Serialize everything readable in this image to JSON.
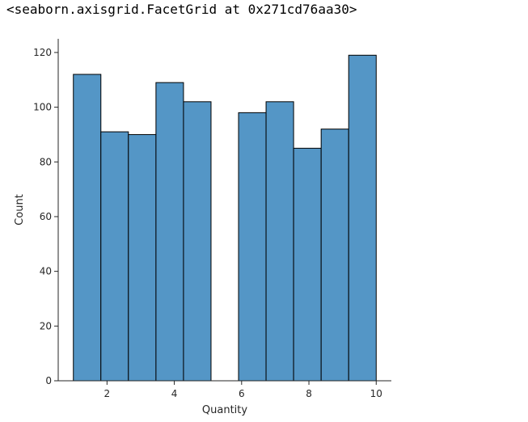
{
  "output": {
    "repr_text": "<seaborn.axisgrid.FacetGrid at 0x271cd76aa30>"
  },
  "chart_data": {
    "type": "histogram",
    "title": "",
    "xlabel": "Quantity",
    "ylabel": "Count",
    "xlim": [
      0.55,
      10.45
    ],
    "ylim": [
      0,
      125
    ],
    "bar_color": "#5496c6",
    "edge_color": "#000000",
    "grid": false,
    "bins": [
      {
        "start": 1.0,
        "end": 1.818,
        "count": 112
      },
      {
        "start": 1.818,
        "end": 2.636,
        "count": 91
      },
      {
        "start": 2.636,
        "end": 3.455,
        "count": 90
      },
      {
        "start": 3.455,
        "end": 4.273,
        "count": 109
      },
      {
        "start": 4.273,
        "end": 5.091,
        "count": 102
      },
      {
        "start": 5.091,
        "end": 5.909,
        "count": 0
      },
      {
        "start": 5.909,
        "end": 6.727,
        "count": 98
      },
      {
        "start": 6.727,
        "end": 7.545,
        "count": 102
      },
      {
        "start": 7.545,
        "end": 8.364,
        "count": 85
      },
      {
        "start": 8.364,
        "end": 9.182,
        "count": 92
      },
      {
        "start": 9.182,
        "end": 10.0,
        "count": 119
      }
    ],
    "xticks": [
      2,
      4,
      6,
      8,
      10
    ],
    "yticks": [
      0,
      20,
      40,
      60,
      80,
      100,
      120
    ]
  }
}
